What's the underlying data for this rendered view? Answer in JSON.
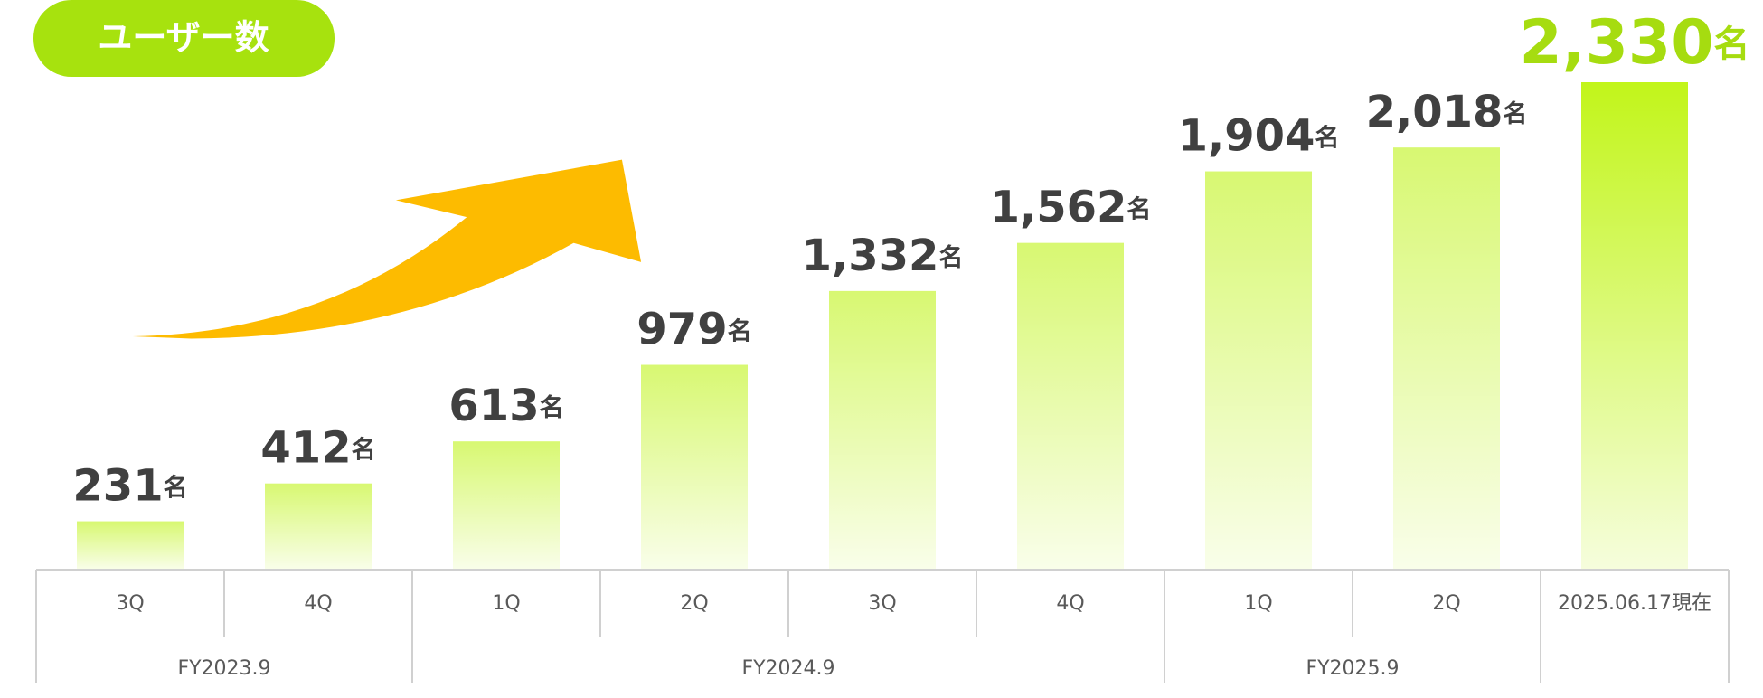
{
  "chart_data": {
    "type": "bar",
    "title": "ユーザー数",
    "categories": [
      "3Q",
      "4Q",
      "1Q",
      "2Q",
      "3Q",
      "4Q",
      "1Q",
      "2Q",
      "2025.06.17現在"
    ],
    "values": [
      231,
      412,
      613,
      979,
      1332,
      1562,
      1904,
      2018,
      2330
    ],
    "value_labels": [
      "231",
      "412",
      "613",
      "979",
      "1,332",
      "1,562",
      "1,904",
      "2,018",
      "2,330"
    ],
    "value_label_unit": "名",
    "colors": [
      "#d8f872",
      "#d8f872",
      "#d8f872",
      "#d8f872",
      "#d8f872",
      "#d8f872",
      "#d8f872",
      "#d8f872",
      "#c2f51a"
    ],
    "value_label_colors": [
      "#404040",
      "#404040",
      "#404040",
      "#404040",
      "#404040",
      "#404040",
      "#404040",
      "#404040",
      "#a6dc10"
    ],
    "category_groups": [
      {
        "name": "FY2023.9",
        "size": 2
      },
      {
        "name": "FY2024.9",
        "size": 4
      },
      {
        "name": "FY2025.9",
        "size": 2
      }
    ]
  }
}
